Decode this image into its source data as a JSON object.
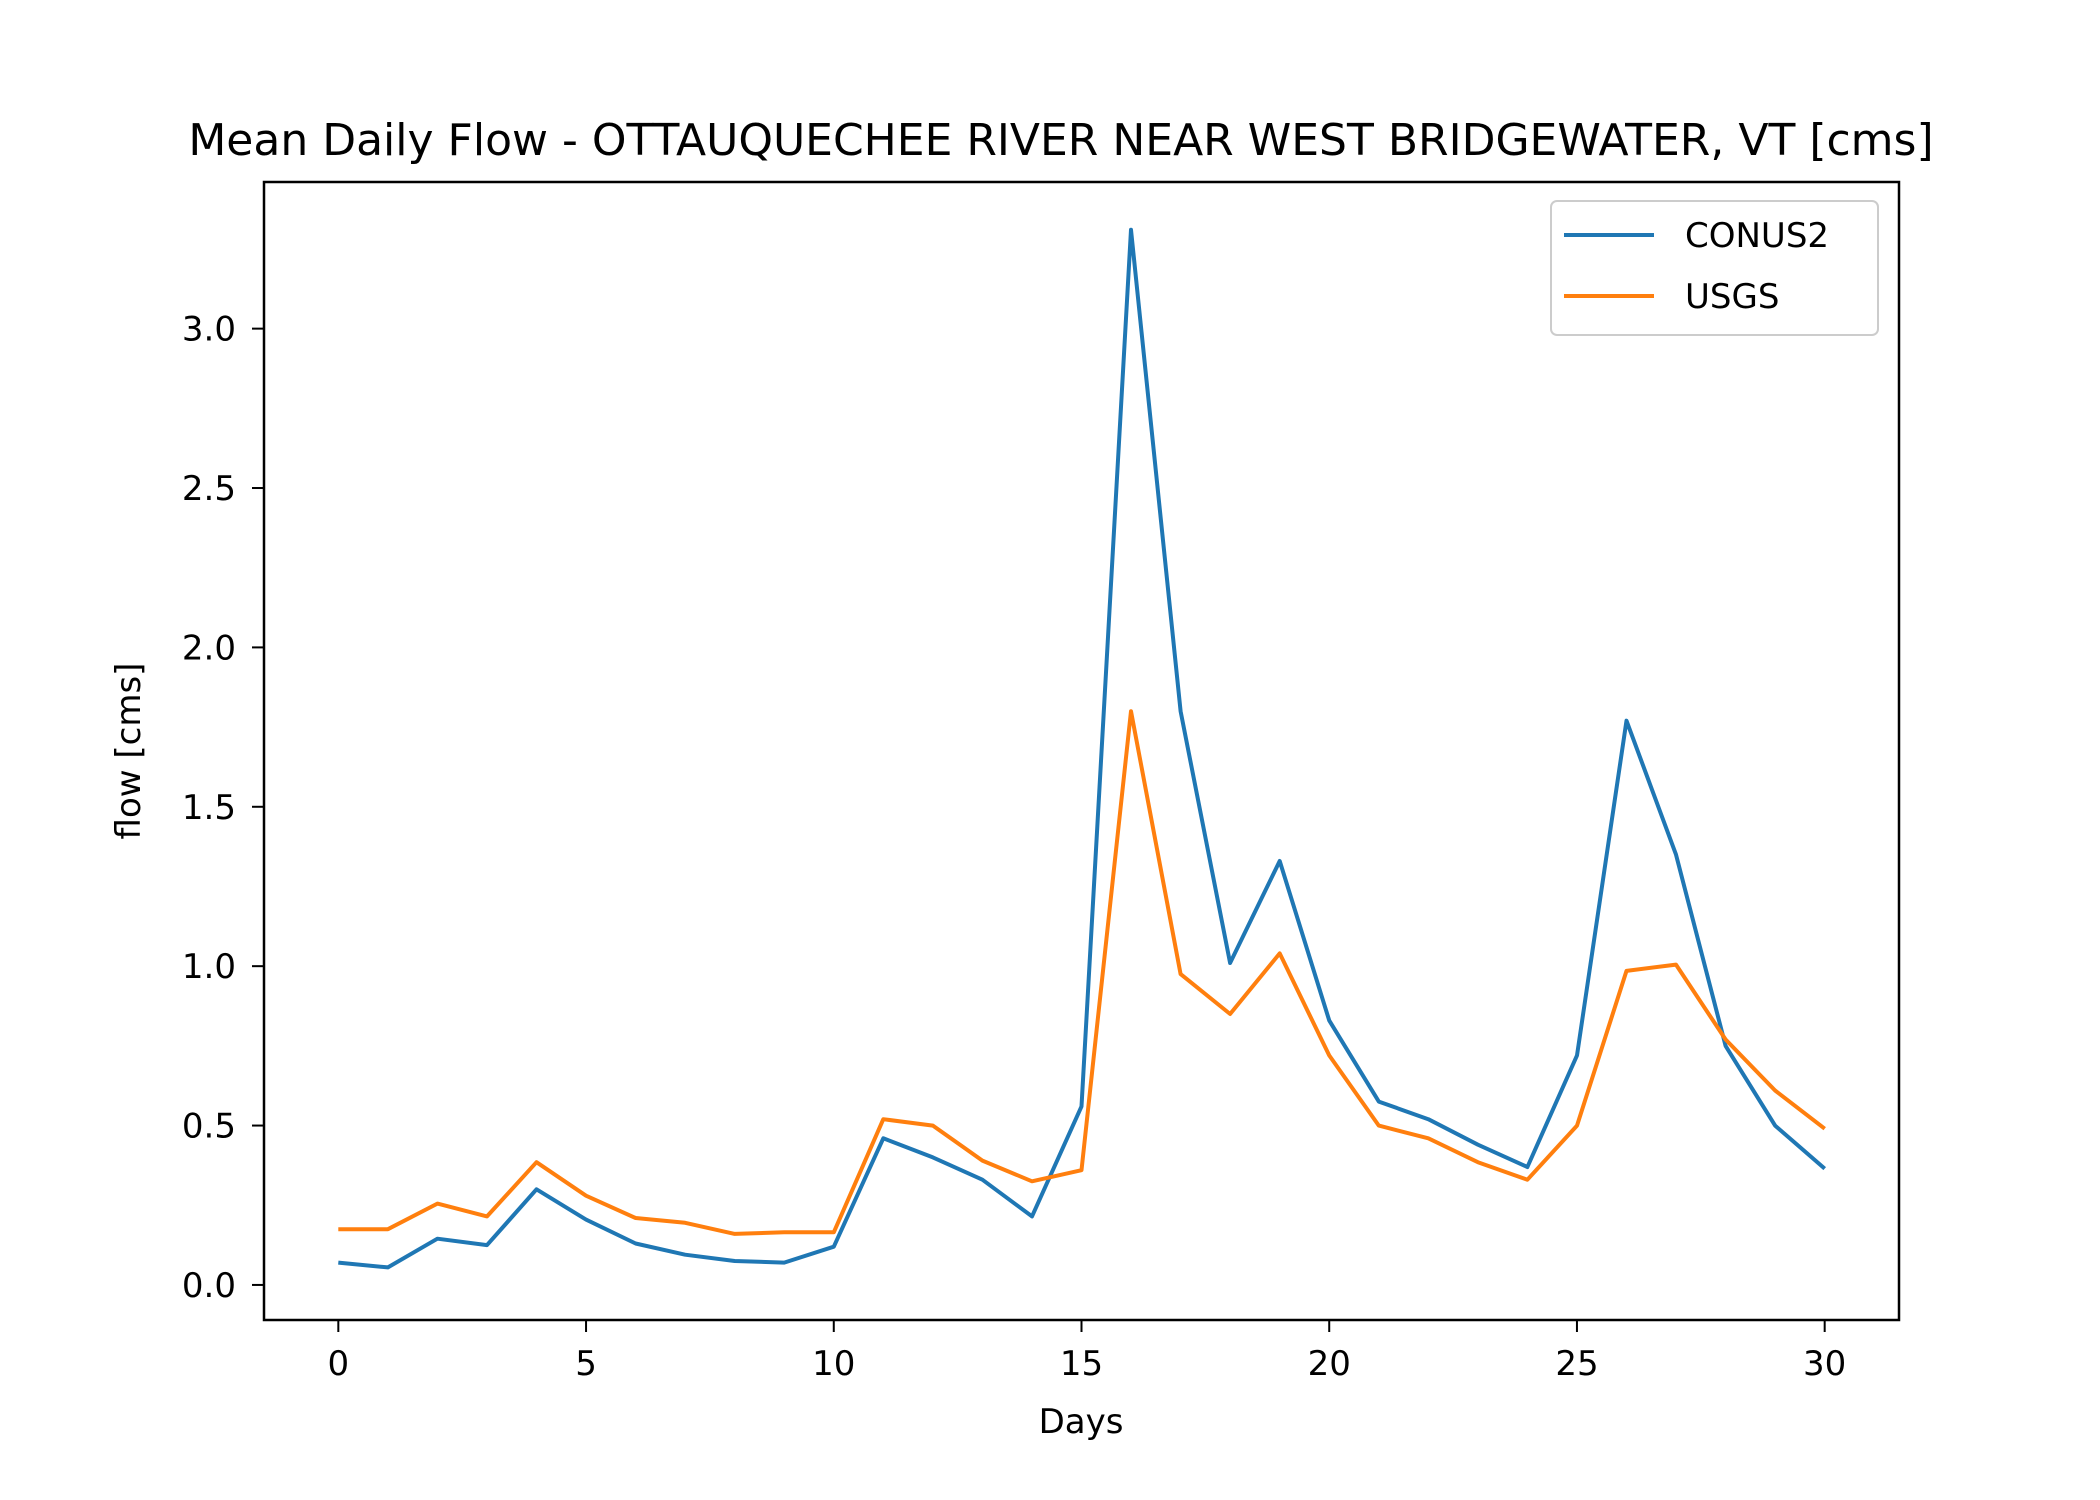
{
  "chart_data": {
    "type": "line",
    "title": "Mean Daily Flow - OTTAUQUECHEE RIVER NEAR WEST BRIDGEWATER, VT [cms]",
    "xlabel": "Days",
    "ylabel": "flow [cms]",
    "xlim": [
      -1.5,
      31.5
    ],
    "ylim": [
      -0.11,
      3.46
    ],
    "xticks": [
      0,
      5,
      10,
      15,
      20,
      25,
      30
    ],
    "xtick_labels": [
      "0",
      "5",
      "10",
      "15",
      "20",
      "25",
      "30"
    ],
    "yticks": [
      0.0,
      0.5,
      1.0,
      1.5,
      2.0,
      2.5,
      3.0
    ],
    "ytick_labels": [
      "0.0",
      "0.5",
      "1.0",
      "1.5",
      "2.0",
      "2.5",
      "3.0"
    ],
    "grid": false,
    "legend_position": "top-right",
    "x": [
      0,
      1,
      2,
      3,
      4,
      5,
      6,
      7,
      8,
      9,
      10,
      11,
      12,
      13,
      14,
      15,
      16,
      17,
      18,
      19,
      20,
      21,
      22,
      23,
      24,
      25,
      26,
      27,
      28,
      29,
      30
    ],
    "series": [
      {
        "name": "CONUS2",
        "color": "#1f77b4",
        "values": [
          0.07,
          0.055,
          0.145,
          0.125,
          0.3,
          0.205,
          0.13,
          0.095,
          0.075,
          0.07,
          0.12,
          0.46,
          0.4,
          0.33,
          0.215,
          0.56,
          3.31,
          1.8,
          1.01,
          1.33,
          0.83,
          0.575,
          0.52,
          0.44,
          0.37,
          0.72,
          1.77,
          1.35,
          0.75,
          0.5,
          0.365
        ]
      },
      {
        "name": "USGS",
        "color": "#ff7f0e",
        "values": [
          0.175,
          0.175,
          0.255,
          0.215,
          0.385,
          0.28,
          0.21,
          0.195,
          0.16,
          0.165,
          0.165,
          0.52,
          0.5,
          0.39,
          0.325,
          0.36,
          1.8,
          0.975,
          0.85,
          1.04,
          0.72,
          0.5,
          0.46,
          0.385,
          0.33,
          0.5,
          0.985,
          1.005,
          0.77,
          0.61,
          0.49
        ]
      }
    ]
  }
}
